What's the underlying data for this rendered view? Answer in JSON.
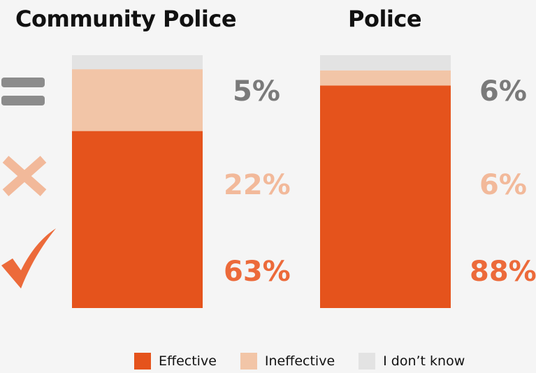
{
  "colors": {
    "effective": "#e5531c",
    "ineffective": "#f2c5a7",
    "dont_know": "#e3e3e3",
    "pct_dont_know": "#7a7a7a",
    "pct_ineffective": "#f2b99a",
    "pct_effective": "#ec6a3a",
    "icon_equal": "#8c8c8c",
    "icon_cross": "#f2b99a",
    "icon_check": "#ec6a3a"
  },
  "icons": {
    "dont_know": "equals-icon",
    "ineffective": "cross-icon",
    "effective": "check-icon"
  },
  "chart_data": {
    "type": "bar",
    "stacked": true,
    "categories": [
      "Community Police",
      "Police"
    ],
    "series": [
      {
        "name": "Effective",
        "values": [
          63,
          88
        ]
      },
      {
        "name": "Ineffective",
        "values": [
          22,
          6
        ]
      },
      {
        "name": "I don’t know",
        "values": [
          5,
          6
        ]
      }
    ],
    "labels": [
      {
        "effective": "63%",
        "ineffective": "22%",
        "dont_know": "5%"
      },
      {
        "effective": "88%",
        "ineffective": "6%",
        "dont_know": "6%"
      }
    ],
    "legend_position": "bottom",
    "grid": false
  }
}
